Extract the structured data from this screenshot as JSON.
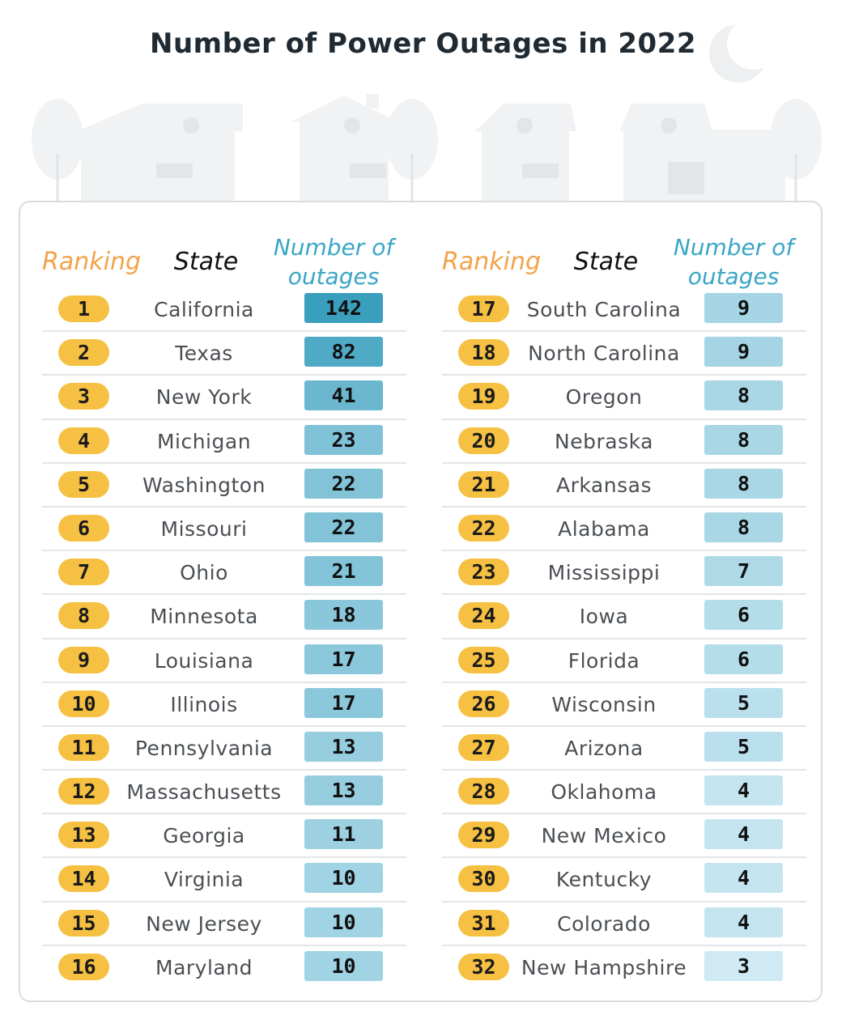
{
  "title": "Number of Power Outages in 2022",
  "headers": {
    "ranking": "Ranking",
    "state": "State",
    "outages_line1": "Number of",
    "outages_line2": "outages"
  },
  "colors": {
    "rank_pill": "#f6c142",
    "ranking_header": "#f2a24a",
    "outages_header": "#3aa6c6",
    "value_max": "#3a9fbd",
    "value_min": "#cfeaf4"
  },
  "chart_data": {
    "type": "table",
    "title": "Number of Power Outages in 2022",
    "columns": [
      "Ranking",
      "State",
      "Number of outages"
    ],
    "rows": [
      {
        "rank": "1",
        "state": "California",
        "outages": 142
      },
      {
        "rank": "2",
        "state": "Texas",
        "outages": 82
      },
      {
        "rank": "3",
        "state": "New York",
        "outages": 41
      },
      {
        "rank": "4",
        "state": "Michigan",
        "outages": 23
      },
      {
        "rank": "5",
        "state": "Washington",
        "outages": 22
      },
      {
        "rank": "6",
        "state": "Missouri",
        "outages": 22
      },
      {
        "rank": "7",
        "state": "Ohio",
        "outages": 21
      },
      {
        "rank": "8",
        "state": "Minnesota",
        "outages": 18
      },
      {
        "rank": "9",
        "state": "Louisiana",
        "outages": 17
      },
      {
        "rank": "10",
        "state": "Illinois",
        "outages": 17
      },
      {
        "rank": "11",
        "state": "Pennsylvania",
        "outages": 13
      },
      {
        "rank": "12",
        "state": "Massachusetts",
        "outages": 13
      },
      {
        "rank": "13",
        "state": "Georgia",
        "outages": 11
      },
      {
        "rank": "14",
        "state": "Virginia",
        "outages": 10
      },
      {
        "rank": "15",
        "state": "New Jersey",
        "outages": 10
      },
      {
        "rank": "16",
        "state": "Maryland",
        "outages": 10
      },
      {
        "rank": "17",
        "state": "South Carolina",
        "outages": 9
      },
      {
        "rank": "18",
        "state": "North Carolina",
        "outages": 9
      },
      {
        "rank": "19",
        "state": "Oregon",
        "outages": 8
      },
      {
        "rank": "20",
        "state": "Nebraska",
        "outages": 8
      },
      {
        "rank": "21",
        "state": "Arkansas",
        "outages": 8
      },
      {
        "rank": "22",
        "state": "Alabama",
        "outages": 8
      },
      {
        "rank": "23",
        "state": "Mississippi",
        "outages": 7
      },
      {
        "rank": "24",
        "state": "Iowa",
        "outages": 6
      },
      {
        "rank": "25",
        "state": "Florida",
        "outages": 6
      },
      {
        "rank": "26",
        "state": "Wisconsin",
        "outages": 5
      },
      {
        "rank": "27",
        "state": "Arizona",
        "outages": 5
      },
      {
        "rank": "28",
        "state": "Oklahoma",
        "outages": 4
      },
      {
        "rank": "29",
        "state": "New Mexico",
        "outages": 4
      },
      {
        "rank": "30",
        "state": "Kentucky",
        "outages": 4
      },
      {
        "rank": "31",
        "state": "Colorado",
        "outages": 4
      },
      {
        "rank": "32",
        "state": "New Hampshire",
        "outages": 3
      }
    ]
  }
}
